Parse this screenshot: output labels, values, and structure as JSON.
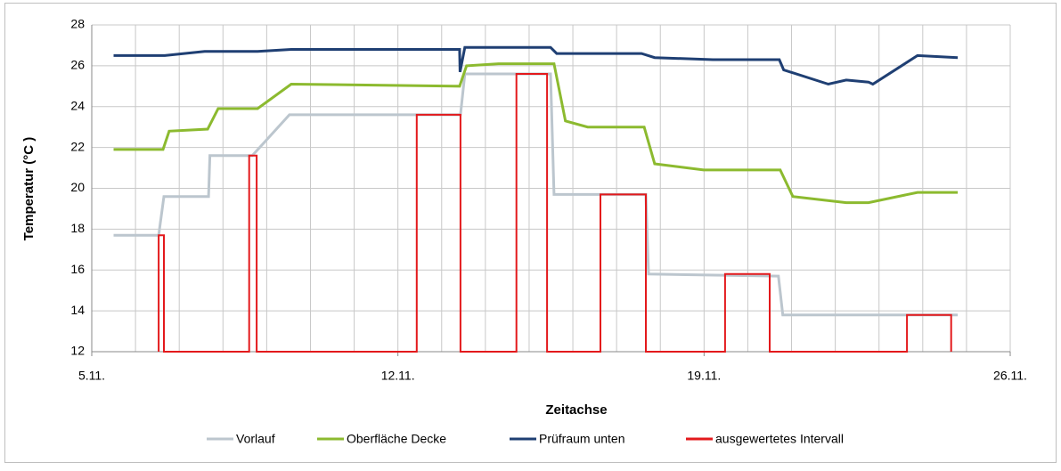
{
  "chart_data": {
    "type": "line",
    "xlabel": "Zeitachse",
    "ylabel": "Temperatur (°C )",
    "xlim": [
      5,
      26
    ],
    "xticks": [
      {
        "value": 5,
        "label": "5.11."
      },
      {
        "value": 12,
        "label": "12.11."
      },
      {
        "value": 19,
        "label": "19.11."
      },
      {
        "value": 26,
        "label": "26.11."
      }
    ],
    "xgrid": [
      5,
      6,
      7,
      8,
      9,
      10,
      11,
      12,
      13,
      14,
      15,
      16,
      17,
      18,
      19,
      20,
      21,
      22,
      23,
      24,
      25,
      26
    ],
    "ylim": [
      12,
      28
    ],
    "yticks": [
      12,
      14,
      16,
      18,
      20,
      22,
      24,
      26,
      28
    ],
    "grid": true,
    "legend": "bottom",
    "series": [
      {
        "name": "Vorlauf",
        "color": "#bcc6ce",
        "x": [
          5.5,
          6.53,
          6.65,
          7.67,
          7.7,
          8.67,
          9.52,
          13.43,
          13.53,
          15.49,
          15.57,
          17.67,
          17.73,
          20.7,
          20.8,
          24.8
        ],
        "values": [
          17.7,
          17.7,
          19.6,
          19.6,
          21.6,
          21.6,
          23.6,
          23.6,
          25.6,
          25.6,
          19.7,
          19.7,
          15.8,
          15.7,
          13.8,
          13.8
        ]
      },
      {
        "name": "Oberfläche Decke",
        "color": "#8cba2f",
        "x": [
          5.5,
          6.63,
          6.77,
          7.65,
          7.89,
          8.79,
          9.56,
          13.41,
          13.57,
          14.3,
          15.57,
          15.83,
          16.34,
          17.63,
          17.87,
          18.99,
          20.74,
          21.03,
          22.25,
          22.76,
          23.88,
          24.8
        ],
        "values": [
          21.9,
          21.9,
          22.8,
          22.9,
          23.9,
          23.9,
          25.1,
          25.0,
          26.0,
          26.1,
          26.1,
          23.3,
          23.0,
          23.0,
          21.2,
          20.9,
          20.9,
          19.6,
          19.3,
          19.3,
          19.8,
          19.8
        ]
      },
      {
        "name": "Prüfraum unten",
        "color": "#1f3f73",
        "x": [
          5.5,
          6.63,
          6.67,
          7.58,
          8.79,
          9.56,
          13.41,
          13.42,
          13.53,
          15.49,
          15.63,
          17.57,
          17.87,
          19.2,
          20.72,
          20.82,
          21.84,
          22.25,
          22.76,
          22.86,
          23.88,
          24.8
        ],
        "values": [
          26.5,
          26.5,
          26.5,
          26.7,
          26.7,
          26.8,
          26.8,
          25.7,
          26.9,
          26.9,
          26.6,
          26.6,
          26.4,
          26.3,
          26.3,
          25.8,
          25.1,
          25.3,
          25.2,
          25.1,
          26.5,
          26.4
        ]
      },
      {
        "name": "ausgewertetes Intervall",
        "color": "#e3191c",
        "x": [
          6.53,
          6.53,
          6.65,
          6.65,
          8.6,
          8.6,
          8.77,
          8.77,
          12.43,
          12.43,
          13.43,
          13.43,
          14.71,
          14.71,
          15.41,
          15.41,
          16.63,
          16.63,
          17.67,
          17.67,
          19.48,
          19.48,
          20.5,
          20.5,
          23.64,
          23.64,
          24.65,
          24.65
        ],
        "values": [
          12,
          17.7,
          17.7,
          12,
          12,
          21.6,
          21.6,
          12,
          12,
          23.6,
          23.6,
          12,
          12,
          25.6,
          25.6,
          12,
          12,
          19.7,
          19.7,
          12,
          12,
          15.8,
          15.8,
          12,
          12,
          13.8,
          13.8,
          12
        ]
      }
    ]
  }
}
